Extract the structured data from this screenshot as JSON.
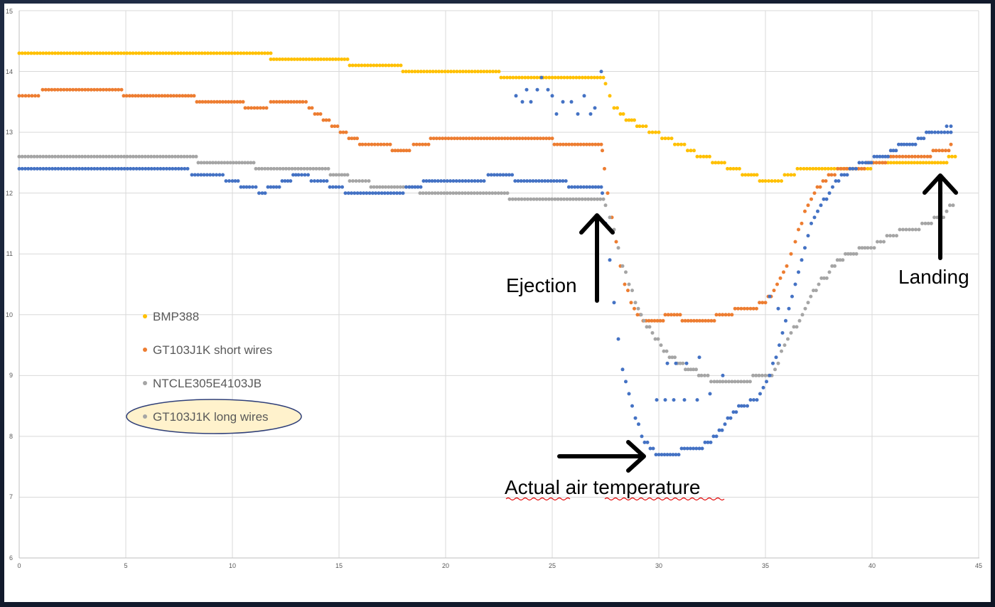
{
  "colors": {
    "BMP388": "#FFC000",
    "GT103J1K short wires": "#ED7D31",
    "NTCLE305E4103JB": "#A5A5A5",
    "GT103J1K long wires": "#4472C4",
    "grid": "#D9D9D9",
    "highlight_fill": "#FFF2CC",
    "highlight_stroke": "#2F3F78",
    "arrow": "#000000",
    "squiggle": "#E00000"
  },
  "chart_data": {
    "type": "scatter",
    "title": "",
    "xlabel": "",
    "ylabel": "",
    "xlim": [
      0,
      45
    ],
    "ylim": [
      6,
      15
    ],
    "xticks": [
      0,
      5,
      10,
      15,
      20,
      25,
      30,
      35,
      40,
      45
    ],
    "yticks": [
      6,
      7,
      8,
      9,
      10,
      11,
      12,
      13,
      14,
      15
    ],
    "grid": true,
    "legend": {
      "placement": "left-middle",
      "entries": [
        "BMP388",
        "GT103J1K short wires",
        "NTCLE305E4103JB",
        "GT103J1K long wires"
      ],
      "highlighted": "GT103J1K long wires"
    },
    "series": [
      {
        "name": "BMP388",
        "points": [
          [
            0,
            14.3
          ],
          [
            11.8,
            14.3
          ],
          [
            11.8,
            14.2
          ],
          [
            15.4,
            14.2
          ],
          [
            15.5,
            14.1
          ],
          [
            17.9,
            14.1
          ],
          [
            18,
            14.0
          ],
          [
            22.5,
            14.0
          ],
          [
            22.6,
            13.9
          ],
          [
            27.4,
            13.9
          ],
          [
            27.5,
            13.8
          ],
          [
            27.7,
            13.6
          ],
          [
            27.9,
            13.4
          ],
          [
            28.2,
            13.3
          ],
          [
            28.6,
            13.2
          ],
          [
            29.1,
            13.1
          ],
          [
            29.7,
            13.0
          ],
          [
            30.3,
            12.9
          ],
          [
            30.9,
            12.8
          ],
          [
            31.5,
            12.7
          ],
          [
            32.1,
            12.6
          ],
          [
            32.8,
            12.5
          ],
          [
            33.5,
            12.4
          ],
          [
            34.2,
            12.3
          ],
          [
            35.0,
            12.2
          ],
          [
            35.6,
            12.2
          ],
          [
            36.2,
            12.3
          ],
          [
            36.8,
            12.4
          ],
          [
            39.8,
            12.4
          ],
          [
            40.2,
            12.5
          ],
          [
            43.5,
            12.5
          ],
          [
            43.6,
            12.6
          ],
          [
            43.9,
            12.6
          ]
        ]
      },
      {
        "name": "GT103J1K short wires",
        "points": [
          [
            0,
            13.6
          ],
          [
            0.9,
            13.6
          ],
          [
            1.1,
            13.7
          ],
          [
            4.8,
            13.7
          ],
          [
            4.9,
            13.6
          ],
          [
            7.8,
            13.6
          ],
          [
            8.6,
            13.5
          ],
          [
            10.5,
            13.5
          ],
          [
            10.6,
            13.4
          ],
          [
            11.6,
            13.4
          ],
          [
            11.8,
            13.5
          ],
          [
            13.3,
            13.5
          ],
          [
            13.6,
            13.4
          ],
          [
            14.0,
            13.3
          ],
          [
            14.4,
            13.2
          ],
          [
            14.8,
            13.1
          ],
          [
            15.2,
            13.0
          ],
          [
            15.6,
            12.9
          ],
          [
            16.1,
            12.8
          ],
          [
            17.4,
            12.8
          ],
          [
            17.5,
            12.7
          ],
          [
            18.3,
            12.7
          ],
          [
            18.5,
            12.8
          ],
          [
            19.2,
            12.8
          ],
          [
            19.3,
            12.9
          ],
          [
            25.0,
            12.9
          ],
          [
            25.1,
            12.8
          ],
          [
            27.3,
            12.8
          ],
          [
            27.35,
            12.7
          ],
          [
            27.45,
            12.4
          ],
          [
            27.6,
            12.0
          ],
          [
            27.8,
            11.6
          ],
          [
            28.0,
            11.2
          ],
          [
            28.2,
            10.8
          ],
          [
            28.4,
            10.5
          ],
          [
            28.7,
            10.2
          ],
          [
            29.0,
            10.0
          ],
          [
            29.4,
            9.9
          ],
          [
            30.2,
            9.9
          ],
          [
            30.3,
            10.0
          ],
          [
            31.0,
            10.0
          ],
          [
            31.1,
            9.9
          ],
          [
            32.6,
            9.9
          ],
          [
            32.7,
            10.0
          ],
          [
            34.3,
            10.1
          ],
          [
            35.0,
            10.2
          ],
          [
            35.4,
            10.4
          ],
          [
            35.7,
            10.6
          ],
          [
            36.0,
            10.8
          ],
          [
            36.2,
            11.0
          ],
          [
            36.4,
            11.2
          ],
          [
            36.7,
            11.5
          ],
          [
            37.0,
            11.8
          ],
          [
            37.3,
            12.0
          ],
          [
            37.7,
            12.2
          ],
          [
            38.1,
            12.3
          ],
          [
            38.7,
            12.4
          ],
          [
            39.5,
            12.4
          ],
          [
            39.9,
            12.5
          ],
          [
            40.5,
            12.5
          ],
          [
            41.0,
            12.6
          ],
          [
            42.6,
            12.6
          ],
          [
            43.0,
            12.7
          ],
          [
            43.6,
            12.7
          ],
          [
            43.7,
            12.8
          ]
        ]
      },
      {
        "name": "NTCLE305E4103JB",
        "points": [
          [
            0,
            12.6
          ],
          [
            8.3,
            12.6
          ],
          [
            8.4,
            12.5
          ],
          [
            11.0,
            12.5
          ],
          [
            11.1,
            12.4
          ],
          [
            14.5,
            12.4
          ],
          [
            14.6,
            12.3
          ],
          [
            15.4,
            12.3
          ],
          [
            15.5,
            12.2
          ],
          [
            16.4,
            12.2
          ],
          [
            16.5,
            12.1
          ],
          [
            18.7,
            12.1
          ],
          [
            18.8,
            12.0
          ],
          [
            22.9,
            12.0
          ],
          [
            23.0,
            11.9
          ],
          [
            27.4,
            11.9
          ],
          [
            27.5,
            11.8
          ],
          [
            27.7,
            11.6
          ],
          [
            27.9,
            11.4
          ],
          [
            28.1,
            11.1
          ],
          [
            28.3,
            10.8
          ],
          [
            28.6,
            10.5
          ],
          [
            28.9,
            10.2
          ],
          [
            29.3,
            9.9
          ],
          [
            29.7,
            9.7
          ],
          [
            30.1,
            9.5
          ],
          [
            30.5,
            9.3
          ],
          [
            31.0,
            9.2
          ],
          [
            31.5,
            9.1
          ],
          [
            32.0,
            9.0
          ],
          [
            32.6,
            8.9
          ],
          [
            33.0,
            8.9
          ],
          [
            34.0,
            8.9
          ],
          [
            34.7,
            9.0
          ],
          [
            35.3,
            9.0
          ],
          [
            35.6,
            9.2
          ],
          [
            35.9,
            9.5
          ],
          [
            36.2,
            9.7
          ],
          [
            36.6,
            9.9
          ],
          [
            37.0,
            10.2
          ],
          [
            37.5,
            10.5
          ],
          [
            38.0,
            10.7
          ],
          [
            38.5,
            10.9
          ],
          [
            39.0,
            11.0
          ],
          [
            39.8,
            11.1
          ],
          [
            40.4,
            11.2
          ],
          [
            41.0,
            11.3
          ],
          [
            41.6,
            11.4
          ],
          [
            42.2,
            11.4
          ],
          [
            42.5,
            11.5
          ],
          [
            43.2,
            11.6
          ],
          [
            43.5,
            11.7
          ],
          [
            43.8,
            11.8
          ]
        ]
      },
      {
        "name": "GT103J1K long wires",
        "points": [
          [
            0,
            12.4
          ],
          [
            7.9,
            12.4
          ],
          [
            8.1,
            12.3
          ],
          [
            9.1,
            12.3
          ],
          [
            10.0,
            12.2
          ],
          [
            10.8,
            12.1
          ],
          [
            11.4,
            12.0
          ],
          [
            11.8,
            12.1
          ],
          [
            12.6,
            12.2
          ],
          [
            13.1,
            12.3
          ],
          [
            14.0,
            12.2
          ],
          [
            15.0,
            12.1
          ],
          [
            15.3,
            12.0
          ],
          [
            18.0,
            12.0
          ],
          [
            18.3,
            12.1
          ],
          [
            19.5,
            12.2
          ],
          [
            21.8,
            12.2
          ],
          [
            22.0,
            12.3
          ],
          [
            26.9,
            12.1
          ],
          [
            27.3,
            12.1
          ],
          [
            27.35,
            12.0
          ],
          [
            27.5,
            11.5
          ],
          [
            27.7,
            10.9
          ],
          [
            27.9,
            10.2
          ],
          [
            28.1,
            9.6
          ],
          [
            28.3,
            9.1
          ],
          [
            28.6,
            8.7
          ],
          [
            28.9,
            8.3
          ],
          [
            29.2,
            8.0
          ],
          [
            29.6,
            7.8
          ],
          [
            30.0,
            7.7
          ],
          [
            30.8,
            7.7
          ],
          [
            31.2,
            7.8
          ],
          [
            31.9,
            7.8
          ],
          [
            32.3,
            7.9
          ],
          [
            32.7,
            8.0
          ],
          [
            33.1,
            8.2
          ],
          [
            33.5,
            8.4
          ],
          [
            34.0,
            8.5
          ],
          [
            34.6,
            8.6
          ],
          [
            34.9,
            8.8
          ],
          [
            35.2,
            9.0
          ],
          [
            35.5,
            9.3
          ],
          [
            35.8,
            9.7
          ],
          [
            36.1,
            10.1
          ],
          [
            36.4,
            10.5
          ],
          [
            36.7,
            10.9
          ],
          [
            37.0,
            11.3
          ],
          [
            37.3,
            11.6
          ],
          [
            37.6,
            11.8
          ],
          [
            38.0,
            12.0
          ],
          [
            38.3,
            12.2
          ],
          [
            38.7,
            12.3
          ],
          [
            39.1,
            12.4
          ],
          [
            39.7,
            12.5
          ],
          [
            40.5,
            12.6
          ],
          [
            41.0,
            12.7
          ],
          [
            41.5,
            12.8
          ],
          [
            41.9,
            12.8
          ],
          [
            42.3,
            12.9
          ],
          [
            42.8,
            13.0
          ],
          [
            43.4,
            13.0
          ],
          [
            43.7,
            13.0
          ],
          [
            43.5,
            13.1
          ],
          [
            43.7,
            13.1
          ]
        ]
      },
      {
        "name": "GT103J1K long wires (scattered)",
        "points": [
          [
            23.3,
            13.6
          ],
          [
            23.6,
            13.5
          ],
          [
            23.8,
            13.7
          ],
          [
            24.0,
            13.5
          ],
          [
            24.3,
            13.7
          ],
          [
            24.5,
            13.9
          ],
          [
            24.8,
            13.7
          ],
          [
            25.0,
            13.6
          ],
          [
            25.2,
            13.3
          ],
          [
            25.5,
            13.5
          ],
          [
            25.9,
            13.5
          ],
          [
            26.2,
            13.3
          ],
          [
            26.5,
            13.6
          ],
          [
            26.8,
            13.3
          ],
          [
            27.0,
            13.4
          ],
          [
            27.3,
            14.0
          ],
          [
            29.9,
            8.6
          ],
          [
            30.3,
            8.6
          ],
          [
            30.7,
            8.6
          ],
          [
            31.2,
            8.6
          ],
          [
            31.8,
            8.6
          ],
          [
            32.4,
            8.7
          ],
          [
            30.4,
            9.2
          ],
          [
            30.8,
            9.2
          ],
          [
            31.3,
            9.2
          ],
          [
            31.9,
            9.3
          ],
          [
            33.0,
            9.0
          ],
          [
            35.2,
            10.3
          ],
          [
            35.6,
            10.1
          ]
        ]
      }
    ],
    "annotations": [
      "Ejection",
      "Actual air temperature",
      "Landing"
    ]
  },
  "ticks": {
    "x": [
      "0",
      "5",
      "10",
      "15",
      "20",
      "25",
      "30",
      "35",
      "40",
      "45"
    ],
    "y": [
      "6",
      "7",
      "8",
      "9",
      "10",
      "11",
      "12",
      "13",
      "14",
      "15"
    ]
  },
  "legend_labels": {
    "l0": "BMP388",
    "l1": "GT103J1K short wires",
    "l2": "NTCLE305E4103JB",
    "l3": "GT103J1K long wires"
  },
  "annotations": {
    "ejection": "Ejection",
    "air": "Actual air temperature",
    "landing": "Landing"
  }
}
